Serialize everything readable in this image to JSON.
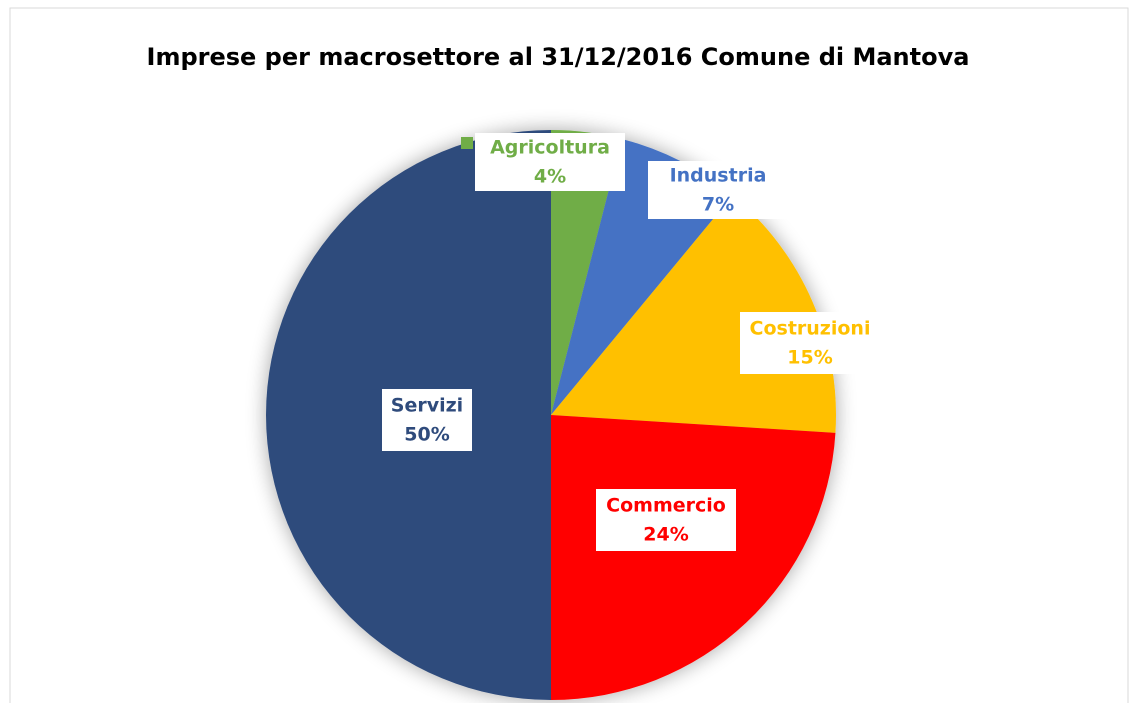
{
  "chart_data": {
    "type": "pie",
    "title": "Imprese per macrosettore  al 31/12/2016 Comune di Mantova",
    "categories": [
      "Agricoltura",
      "Industria",
      "Costruzioni",
      "Commercio",
      "Servizi"
    ],
    "values": [
      4,
      7,
      15,
      24,
      50
    ],
    "value_labels": [
      "4%",
      "7%",
      "15%",
      "24%",
      "50%"
    ],
    "colors": [
      "#70ad47",
      "#4472c4",
      "#ffc000",
      "#ff0000",
      "#2f4b7c"
    ]
  }
}
